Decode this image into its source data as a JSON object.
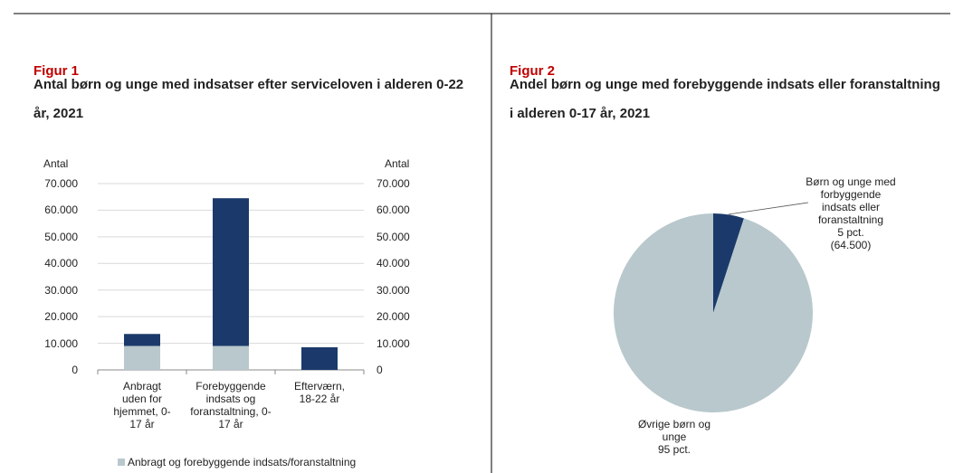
{
  "charts": [
    {
      "figure": "Figur 1",
      "chart_data": {
        "type": "bar",
        "stacked": true,
        "title": "Antal børn og unge med indsatser efter serviceloven i alderen 0-22 år, 2021",
        "ylabel": "Antal",
        "y2label": "Antal",
        "categories": [
          "Anbragt uden for hjemmet, 0-17 år",
          "Forebyggende indsats og foranstaltning, 0-17 år",
          "Efterværn, 18-22 år"
        ],
        "series": [
          {
            "name": "Anbragt og forebyggende indsats/foranstaltning",
            "color": "#b8c8cd",
            "values": [
              9000,
              9000,
              0
            ]
          },
          {
            "color": "#1b3a6b",
            "values": [
              4500,
              55500,
              8500
            ]
          }
        ],
        "ylim": [
          0,
          70000
        ],
        "yticks": [
          0,
          {
            "value": 10000,
            "label": "10.000"
          },
          {
            "value": 20000,
            "label": "20.000"
          },
          {
            "value": 30000,
            "label": "30.000"
          },
          {
            "value": 40000,
            "label": "40.000"
          },
          {
            "value": 50000,
            "label": "50.000"
          },
          {
            "value": 60000,
            "label": "60.000"
          },
          {
            "value": 70000,
            "label": "70.000"
          }
        ],
        "y2lim": [
          0,
          70000
        ],
        "y2ticks": [
          0,
          {
            "value": 10000,
            "label": "10.000"
          },
          {
            "value": 20000,
            "label": "20.000"
          },
          {
            "value": 30000,
            "label": "30.000"
          },
          {
            "value": 40000,
            "label": "40.000"
          },
          {
            "value": 50000,
            "label": "50.000"
          },
          {
            "value": 60000,
            "label": "60.000"
          },
          {
            "value": 70000,
            "label": "70.000"
          }
        ],
        "grid": true,
        "legend": "bottom"
      }
    },
    {
      "figure": "Figur 2",
      "chart_data": {
        "type": "pie",
        "title": "Andel børn og unge med forebyggende indsats eller foranstaltning i alderen 0-17 år, 2021",
        "categories": [
          "Børn og unge med forbyggende indsats eller foranstaltning",
          "Øvrige børn og unge"
        ],
        "values": [
          5,
          95
        ],
        "value_labels": [
          "5 pct.",
          "95 pct."
        ],
        "count_label": "(64.500)",
        "colors": [
          "#1b3a6b",
          "#b8c8cd"
        ]
      }
    }
  ]
}
